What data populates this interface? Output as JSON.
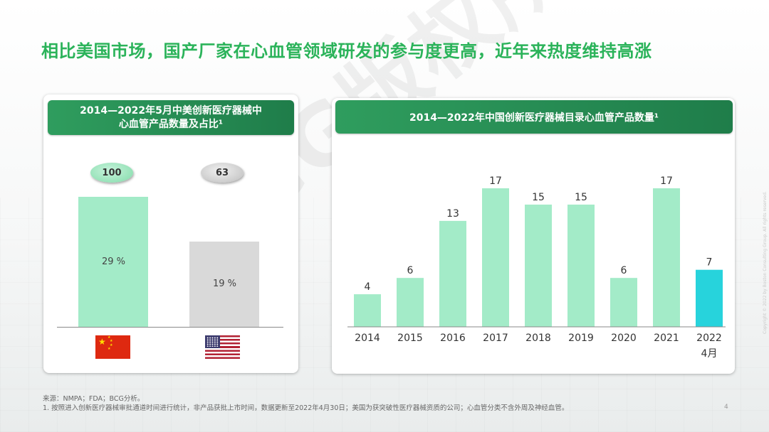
{
  "title": "相比美国市场，国产厂家在心血管领域研发的参与度更高，近年来热度维持高涨",
  "watermark": "BCG版权所有",
  "left_panel": {
    "title_line1": "2014—2022年5月中美创新医疗器械中",
    "title_line2": "心血管产品数量及占比¹",
    "china": {
      "count": "100",
      "pct_label": "29 %",
      "pct": 29,
      "flag": "china-flag"
    },
    "usa": {
      "count": "63",
      "pct_label": "19 %",
      "pct": 19,
      "flag": "usa-flag"
    }
  },
  "right_panel": {
    "title": "2014—2022年中国创新医疗器械目录心血管产品数量¹"
  },
  "chart_data": [
    {
      "type": "bar",
      "title": "2014—2022年5月中美创新医疗器械中心血管产品数量及占比¹",
      "categories": [
        "中国",
        "美国"
      ],
      "values": [
        100,
        63
      ],
      "share_pct": [
        29,
        19
      ],
      "colors": [
        "#a3ebc8",
        "#d9d9d9"
      ]
    },
    {
      "type": "bar",
      "title": "2014—2022年中国创新医疗器械目录心血管产品数量¹",
      "categories": [
        "2014",
        "2015",
        "2016",
        "2017",
        "2018",
        "2019",
        "2020",
        "2021",
        "2022\n4月"
      ],
      "values": [
        4,
        6,
        13,
        17,
        15,
        15,
        6,
        17,
        7
      ],
      "colors": [
        "#a3ebc8",
        "#a3ebc8",
        "#a3ebc8",
        "#a3ebc8",
        "#a3ebc8",
        "#a3ebc8",
        "#a3ebc8",
        "#a3ebc8",
        "#27d3dc"
      ],
      "ylim": [
        0,
        17
      ],
      "grid": false,
      "legend": "none"
    }
  ],
  "footer": {
    "source": "来源：NMPA；FDA；BCG分析。",
    "note": "1. 按照进入创新医疗器械审批通道时间进行统计，非产品获批上市时间，数据更新至2022年4月30日；美国为获突破性医疗器械资质的公司；心血管分类不含外周及神经血管。",
    "page": "4",
    "side_text": "Copyright © 2022 by Boston Consulting Group. All rights reserved."
  }
}
